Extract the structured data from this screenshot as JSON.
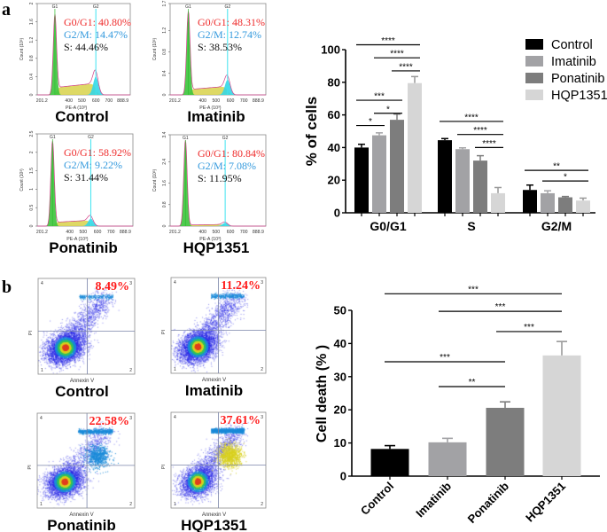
{
  "panel_labels": {
    "a": "a",
    "b": "b"
  },
  "colors": {
    "Control": "#000000",
    "Imatinib": "#a2a2a5",
    "Ponatinib": "#7d7d7d",
    "HQP1351": "#d6d6d6",
    "g0g1_text": "#ee2a2a",
    "g2m_text": "#3399dd",
    "s_text": "#111111",
    "flow_percent": "#ff1a1a"
  },
  "panel_a": {
    "hist_xticks": [
      "201.2",
      "400",
      "500",
      "600",
      "700",
      "888.9"
    ],
    "hist_xlabel": "PE-A (10³)",
    "hist_ylabel": "Count (10³)",
    "gate_labels": [
      "G1",
      "G2"
    ],
    "histograms": [
      {
        "name": "Control",
        "g0g1": "G0/G1: 40.80%",
        "g2m": "G2/M: 14.47%",
        "s": "S: 44.46%",
        "yticks": [
          "0",
          "0.4",
          "0.8",
          "1.2",
          "1.6",
          "2"
        ],
        "ymax": 2,
        "g1_peak": 1.75,
        "g2_peak": 0.4,
        "s_level": 0.16
      },
      {
        "name": "Imatinib",
        "g0g1": "G0/G1: 48.31%",
        "g2m": "G2/M: 12.74%",
        "s": "S: 38.53%",
        "yticks": [
          "0",
          "0.4",
          "0.8",
          "1.2",
          "1.7"
        ],
        "ymax": 1.7,
        "g1_peak": 1.55,
        "g2_peak": 0.28,
        "s_level": 0.1
      },
      {
        "name": "Ponatinib",
        "g0g1": "G0/G1: 58.92%",
        "g2m": "G2/M: 9.22%",
        "s": "S: 31.44%",
        "yticks": [
          "0",
          "0.5",
          "1",
          "1.5",
          "2",
          "2.5"
        ],
        "ymax": 2.5,
        "g1_peak": 2.3,
        "g2_peak": 0.2,
        "s_level": 0.1
      },
      {
        "name": "HQP1351",
        "g0g1": "G0/G1: 80.84%",
        "g2m": "G2/M: 7.08%",
        "s": "S: 11.95%",
        "yticks": [
          "0",
          "0.8",
          "1.6",
          "2.4",
          "3.4"
        ],
        "ymax": 3.4,
        "g1_peak": 3.2,
        "g2_peak": 0.12,
        "s_level": 0.04
      }
    ]
  },
  "panel_b": {
    "flow_xlabel": "Annexin V",
    "flow_ylabel": "PI",
    "quadrant_labels": [
      "1",
      "2",
      "3",
      "4"
    ],
    "flow_plots": [
      {
        "name": "Control",
        "q3_percent": "8.49%"
      },
      {
        "name": "Imatinib",
        "q3_percent": "11.24%"
      },
      {
        "name": "Ponatinib",
        "q3_percent": "22.58%"
      },
      {
        "name": "HQP1351",
        "q3_percent": "37.61%"
      }
    ]
  },
  "chart_data": [
    {
      "type": "bar",
      "panel": "a",
      "categories": [
        "G0/G1",
        "S",
        "G2/M"
      ],
      "ylabel": "% of cells",
      "ylim": [
        0,
        100
      ],
      "yticks": [
        "0",
        "20",
        "40",
        "60",
        "80",
        "100"
      ],
      "legend": "top-right",
      "series": [
        {
          "name": "Control",
          "values": [
            40,
            44.5,
            14
          ],
          "errors": [
            2,
            1,
            3
          ]
        },
        {
          "name": "Imatinib",
          "values": [
            47.5,
            39,
            12
          ],
          "errors": [
            1.5,
            0.8,
            1.5
          ]
        },
        {
          "name": "Ponatinib",
          "values": [
            57,
            32,
            9.5
          ],
          "errors": [
            3.5,
            3,
            0.5
          ]
        },
        {
          "name": "HQP1351",
          "values": [
            79.5,
            12,
            7.5
          ],
          "errors": [
            4,
            3.5,
            1.5
          ]
        }
      ],
      "significance": [
        {
          "group": 0,
          "from": 0,
          "to": 3,
          "y": 103,
          "label": "****"
        },
        {
          "group": 0,
          "from": 1,
          "to": 3,
          "y": 95,
          "label": "****"
        },
        {
          "group": 0,
          "from": 2,
          "to": 3,
          "y": 87,
          "label": "****"
        },
        {
          "group": 0,
          "from": 0,
          "to": 2,
          "y": 69,
          "label": "***"
        },
        {
          "group": 0,
          "from": 1,
          "to": 2,
          "y": 61,
          "label": "*"
        },
        {
          "group": 0,
          "from": 0,
          "to": 1,
          "y": 53.5,
          "label": "*"
        },
        {
          "group": 1,
          "from": 0,
          "to": 3,
          "y": 56,
          "label": "****"
        },
        {
          "group": 1,
          "from": 1,
          "to": 3,
          "y": 48,
          "label": "****"
        },
        {
          "group": 1,
          "from": 2,
          "to": 3,
          "y": 40,
          "label": "****"
        },
        {
          "group": 2,
          "from": 0,
          "to": 3,
          "y": 26,
          "label": "**"
        },
        {
          "group": 2,
          "from": 1,
          "to": 3,
          "y": 19.5,
          "label": "*"
        }
      ]
    },
    {
      "type": "bar",
      "panel": "b",
      "categories": [
        "Control",
        "Imatinib",
        "Ponatinib",
        "HQP1351"
      ],
      "values": [
        8.2,
        10.2,
        20.6,
        36.4
      ],
      "errors": [
        1,
        1.2,
        1.8,
        4.2
      ],
      "ylabel": "Cell death (% )",
      "ylim": [
        0,
        50
      ],
      "yticks": [
        "0",
        "10",
        "20",
        "30",
        "40",
        "50"
      ],
      "significance": [
        {
          "from": 0,
          "to": 3,
          "y": 55,
          "label": "***"
        },
        {
          "from": 1,
          "to": 3,
          "y": 49.7,
          "label": "***"
        },
        {
          "from": 2,
          "to": 3,
          "y": 43.6,
          "label": "***"
        },
        {
          "from": 0,
          "to": 2,
          "y": 34.5,
          "label": "***"
        },
        {
          "from": 1,
          "to": 2,
          "y": 27,
          "label": "**"
        }
      ]
    }
  ]
}
